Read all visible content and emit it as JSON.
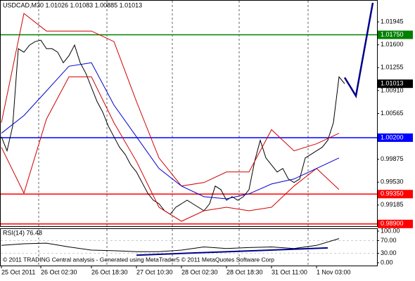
{
  "chart_data": [
    {
      "type": "line",
      "title": "USDCAD,M30  1.01026 1.01083 1.00885 1.01013",
      "xlim": [
        -0.25,
        66.75
      ],
      "xticks": [
        {
          "value": 0,
          "label": "25 Oct 2011"
        },
        {
          "value": 7,
          "label": "26 Oct 02:30"
        },
        {
          "value": 16,
          "label": "26 Oct 18:30"
        },
        {
          "value": 24,
          "label": "27 Oct 10:30"
        },
        {
          "value": 32,
          "label": "28 Oct 02:30"
        },
        {
          "value": 40,
          "label": "28 Oct 18:30"
        },
        {
          "value": 48,
          "label": "31 Oct 11:00"
        },
        {
          "value": 56,
          "label": "1 Nov 03:00"
        }
      ],
      "ylim": [
        0.98866,
        1.02264
      ],
      "yticks": [
        {
          "value": 1.01945,
          "label": "1.01945"
        },
        {
          "value": 1.016,
          "label": "1.01600"
        },
        {
          "value": 1.01255,
          "label": "1.01255"
        },
        {
          "value": 1.0091,
          "label": "1.00910"
        },
        {
          "value": 1.00565,
          "label": "1.00565"
        },
        {
          "value": 0.99875,
          "label": "0.99875"
        },
        {
          "value": 0.9953,
          "label": "0.99530"
        },
        {
          "value": 0.99185,
          "label": "0.99185"
        }
      ],
      "last_price": 1.01013,
      "levels": [
        {
          "value": 1.0175,
          "label": "1.01750",
          "color": "#008000"
        },
        {
          "value": 1.002,
          "label": "1.00200",
          "color": "#0000ff"
        },
        {
          "value": 0.9935,
          "label": "0.99350",
          "color": "#ff0000"
        },
        {
          "value": 0.989,
          "label": "0.98900",
          "color": "#ff0000"
        }
      ],
      "series": [
        {
          "color": "#000000",
          "width": 1,
          "x": [
            0,
            1,
            2,
            3,
            4,
            5,
            6,
            7,
            8,
            9,
            10,
            11,
            12,
            13,
            14,
            15,
            16,
            17,
            18,
            19,
            20,
            21,
            22,
            23,
            24,
            25,
            26,
            27,
            28,
            29,
            30,
            31,
            32,
            33,
            34,
            35,
            36,
            37,
            38,
            39,
            40,
            41,
            42,
            43,
            44,
            45,
            46,
            47,
            48,
            49,
            50,
            51,
            52,
            53,
            54,
            55,
            56,
            57,
            58,
            59,
            60,
            61
          ],
          "values": [
            1.00214,
            1.00002,
            1.00373,
            1.01541,
            1.01488,
            1.01595,
            1.01648,
            1.01669,
            1.01541,
            1.01541,
            1.01488,
            1.01329,
            1.01435,
            1.01595,
            1.01329,
            1.0117,
            1.00957,
            1.00745,
            1.00586,
            1.00373,
            1.00214,
            1.00055,
            0.99948,
            0.99789,
            0.99683,
            0.99524,
            0.99364,
            0.99258,
            0.99205,
            0.99099,
            0.99046,
            0.99152,
            0.99205,
            0.99258,
            0.99205,
            0.99152,
            0.99099,
            0.99205,
            0.99471,
            0.99417,
            0.99258,
            0.99311,
            0.99258,
            0.99311,
            0.99417,
            0.99842,
            1.00161,
            0.99895,
            0.99789,
            0.99683,
            0.99736,
            0.99577,
            0.99524,
            0.99577,
            0.99895,
            0.99948,
            1.00002,
            1.00055,
            1.00161,
            1.00426,
            1.01117,
            1.01013
          ]
        },
        {
          "color": "#d00000",
          "width": 1,
          "x": [
            0,
            4,
            8,
            12,
            16,
            20,
            24,
            28,
            32,
            36,
            40,
            44,
            48,
            52,
            56,
            60
          ],
          "values": [
            1.00426,
            1.02072,
            1.01807,
            1.01807,
            1.01807,
            1.01648,
            1.00745,
            0.99895,
            0.99471,
            0.99524,
            0.99683,
            0.99683,
            1.0032,
            1.00002,
            1.00108,
            1.00267
          ]
        },
        {
          "color": "#d00000",
          "width": 1,
          "x": [
            0,
            4,
            8,
            12,
            16,
            20,
            24,
            28,
            32,
            36,
            40,
            44,
            48,
            52,
            56,
            60
          ],
          "values": [
            1.00055,
            0.99364,
            1.00479,
            1.01117,
            1.01117,
            1.00426,
            0.99842,
            0.99152,
            0.9894,
            0.99099,
            0.99152,
            0.99099,
            0.99152,
            0.99471,
            0.99736,
            0.99417
          ]
        },
        {
          "color": "#0000cd",
          "width": 1,
          "x": [
            0,
            4,
            8,
            12,
            16,
            20,
            24,
            28,
            32,
            36,
            40,
            44,
            48,
            52,
            56,
            60
          ],
          "values": [
            1.00267,
            1.00533,
            1.00904,
            1.01276,
            1.01329,
            1.00692,
            1.00214,
            0.99736,
            0.99471,
            0.99311,
            0.99279,
            0.99354,
            0.99502,
            0.99577,
            0.99736,
            0.99895
          ]
        },
        {
          "color": "#00008b",
          "width": 2.5,
          "x": [
            61,
            62,
            63,
            64,
            65,
            66
          ],
          "values": [
            1.01106,
            1.00968,
            1.0083,
            1.01297,
            1.01764,
            1.02232
          ]
        }
      ]
    },
    {
      "type": "line",
      "label": "RSI(14) 76.48",
      "note": "© 2011 TRADING Central analysis - Generated using MetaTrader5 © 2011 MetaQuotes Software Corp",
      "ylim": [
        0,
        100
      ],
      "yticks": [
        {
          "value": 100,
          "label": "100.00"
        },
        {
          "value": 70,
          "label": "70.00"
        },
        {
          "value": 30,
          "label": "30.00"
        },
        {
          "value": 0,
          "label": "0.00"
        }
      ],
      "series": [
        {
          "color": "#000000",
          "width": 1,
          "x": [
            0,
            4,
            8,
            12,
            16,
            20,
            24,
            28,
            32,
            36,
            40,
            44,
            48,
            52,
            56,
            60
          ],
          "values": [
            55,
            60,
            62,
            50,
            40,
            38,
            35,
            35,
            40,
            50,
            45,
            48,
            50,
            45,
            55,
            76.48
          ]
        },
        {
          "color": "#00008b",
          "width": 2,
          "x": [
            24,
            58
          ],
          "values": [
            24,
            47
          ]
        }
      ]
    }
  ]
}
